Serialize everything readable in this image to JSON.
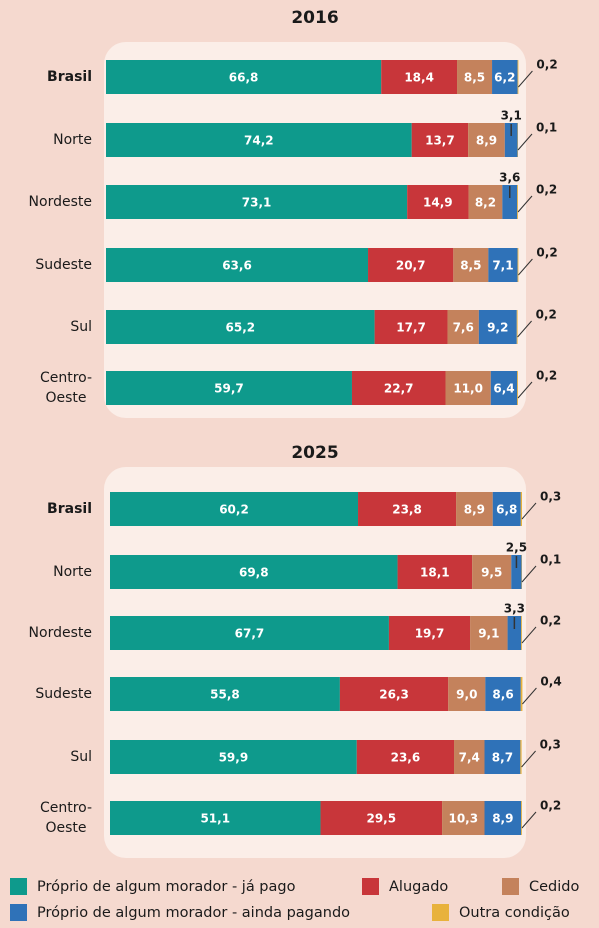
{
  "chart_data": [
    {
      "type": "stacked-bar",
      "title": "2016",
      "xlim": [
        0,
        100
      ],
      "categories": [
        "Brasil",
        "Norte",
        "Nordeste",
        "Sudeste",
        "Sul",
        "Centro-Oeste"
      ],
      "series": [
        {
          "name": "Próprio de algum morador - já pago",
          "color": "#0e9a8c",
          "values": [
            66.8,
            74.2,
            73.1,
            63.6,
            65.2,
            59.7
          ],
          "value_labels": [
            "66,8",
            "74,2",
            "73,1",
            "63,6",
            "65,2",
            "59,7"
          ]
        },
        {
          "name": "Alugado",
          "color": "#c8363a",
          "values": [
            18.4,
            13.7,
            14.9,
            20.7,
            17.7,
            22.7
          ],
          "value_labels": [
            "18,4",
            "13,7",
            "14,9",
            "20,7",
            "17,7",
            "22,7"
          ]
        },
        {
          "name": "Cedido",
          "color": "#c4825c",
          "values": [
            8.5,
            8.9,
            8.2,
            8.5,
            7.6,
            11.0
          ],
          "value_labels": [
            "8,5",
            "8,9",
            "8,2",
            "8,5",
            "7,6",
            "11,0"
          ]
        },
        {
          "name": "Próprio de algum morador - ainda pagando",
          "color": "#2f72b8",
          "values": [
            6.2,
            3.1,
            3.6,
            7.1,
            9.2,
            6.4
          ],
          "value_labels": [
            "6,2",
            "3,1",
            "3,6",
            "7,1",
            "9,2",
            "6,4"
          ]
        },
        {
          "name": "Outra condição",
          "color": "#e8b23c",
          "values": [
            0.2,
            0.1,
            0.2,
            0.2,
            0.2,
            0.2
          ],
          "value_labels": [
            "0,2",
            "0,1",
            "0,2",
            "0,2",
            "0,2",
            "0,2"
          ]
        }
      ]
    },
    {
      "type": "stacked-bar",
      "title": "2025",
      "xlim": [
        0,
        100
      ],
      "categories": [
        "Brasil",
        "Norte",
        "Nordeste",
        "Sudeste",
        "Sul",
        "Centro-Oeste"
      ],
      "series": [
        {
          "color": "#0e9a8c",
          "values": [
            60.2,
            69.8,
            67.7,
            55.8,
            59.9,
            51.1
          ],
          "value_labels": [
            "60,2",
            "69,8",
            "67,7",
            "55,8",
            "59,9",
            "51,1"
          ]
        },
        {
          "color": "#c8363a",
          "values": [
            23.8,
            18.1,
            19.7,
            26.3,
            23.6,
            29.5
          ],
          "value_labels": [
            "23,8",
            "18,1",
            "19,7",
            "26,3",
            "23,6",
            "29,5"
          ]
        },
        {
          "color": "#c4825c",
          "values": [
            8.9,
            9.5,
            9.1,
            9.0,
            7.4,
            10.3
          ],
          "value_labels": [
            "8,9",
            "9,5",
            "9,1",
            "9,0",
            "7,4",
            "10,3"
          ]
        },
        {
          "color": "#2f72b8",
          "values": [
            6.8,
            2.5,
            3.3,
            8.6,
            8.7,
            8.9
          ],
          "value_labels": [
            "6,8",
            "2,5",
            "3,3",
            "8,6",
            "8,7",
            "8,9"
          ]
        },
        {
          "color": "#e8b23c",
          "values": [
            0.3,
            0.1,
            0.2,
            0.4,
            0.3,
            0.2
          ],
          "value_labels": [
            "0,3",
            "0,1",
            "0,2",
            "0,4",
            "0,3",
            "0,2"
          ]
        }
      ]
    }
  ]
}
